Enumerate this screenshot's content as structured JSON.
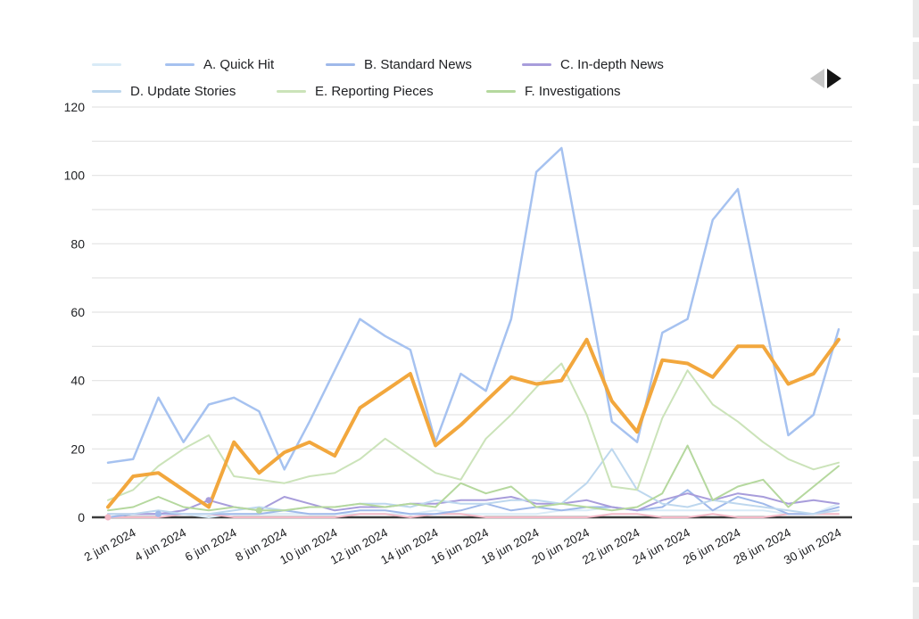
{
  "page": {
    "background": "#ffffff"
  },
  "legend": {
    "position": "top",
    "pagination": {
      "prev_enabled": false,
      "next_enabled": true,
      "prev_color": "#c7c7c7",
      "next_color": "#141414"
    }
  },
  "axes": {
    "y_ticks": [
      0,
      20,
      40,
      60,
      80,
      100,
      120
    ],
    "y_minor_grid_step": 10,
    "ylim": [
      0,
      120
    ],
    "x_tick_labels": [
      "2 jun 2024",
      "4 jun 2024",
      "6 jun 2024",
      "8 jun 2024",
      "10 jun 2024",
      "12 jun 2024",
      "14 jun 2024",
      "16 jun 2024",
      "18 jun 2024",
      "20 jun 2024",
      "22 jun 2024",
      "24 jun 2024",
      "26 jun 2024",
      "28 jun 2024",
      "30 jun 2024"
    ],
    "grid_color": "#e3e3e3",
    "axis_line_color": "#3c3c3c",
    "label_color": "#202124"
  },
  "chart_data": {
    "type": "line",
    "title": "",
    "xlabel": "",
    "ylabel": "",
    "ylim": [
      0,
      120
    ],
    "grid": "horizontal every 10",
    "legend_position": "top",
    "x": [
      "1 jun 2024",
      "2 jun 2024",
      "3 jun 2024",
      "4 jun 2024",
      "5 jun 2024",
      "6 jun 2024",
      "7 jun 2024",
      "8 jun 2024",
      "9 jun 2024",
      "10 jun 2024",
      "11 jun 2024",
      "12 jun 2024",
      "13 jun 2024",
      "14 jun 2024",
      "15 jun 2024",
      "16 jun 2024",
      "17 jun 2024",
      "18 jun 2024",
      "19 jun 2024",
      "20 jun 2024",
      "21 jun 2024",
      "22 jun 2024",
      "23 jun 2024",
      "24 jun 2024",
      "25 jun 2024",
      "26 jun 2024",
      "27 jun 2024",
      "28 jun 2024",
      "29 jun 2024",
      "30 jun 2024"
    ],
    "x_tick_indices": [
      1,
      3,
      5,
      7,
      9,
      11,
      13,
      15,
      17,
      19,
      21,
      23,
      25,
      27,
      29
    ],
    "series": [
      {
        "label": "",
        "color": "#d9ebf7",
        "width": 2,
        "legend_visible": true,
        "values": [
          0,
          1,
          1,
          1,
          0,
          1,
          1,
          1,
          1,
          1,
          1,
          1,
          1,
          2,
          1,
          1,
          1,
          1,
          2,
          2,
          3,
          2,
          2,
          2,
          2,
          2,
          2,
          1,
          1,
          4
        ]
      },
      {
        "label": "A. Quick Hit",
        "color": "#a6c2f0",
        "width": 2.5,
        "legend_visible": true,
        "values": [
          16,
          17,
          35,
          22,
          33,
          35,
          31,
          14,
          28,
          43,
          58,
          53,
          49,
          22,
          42,
          37,
          58,
          101,
          108,
          68,
          28,
          22,
          54,
          58,
          87,
          96,
          60,
          24,
          30,
          55
        ]
      },
      {
        "label": "B. Standard News",
        "color": "#9fb9ea",
        "width": 2,
        "legend_visible": true,
        "values": [
          0,
          1,
          1,
          1,
          1,
          1,
          1,
          2,
          1,
          1,
          2,
          2,
          1,
          1,
          2,
          4,
          2,
          3,
          2,
          3,
          3,
          2,
          3,
          8,
          2,
          6,
          4,
          1,
          1,
          3
        ]
      },
      {
        "label": "C. In-depth News",
        "color": "#a89ddb",
        "width": 2,
        "legend_visible": true,
        "values": [
          1,
          1,
          1,
          2,
          5,
          3,
          2,
          6,
          4,
          2,
          3,
          3,
          4,
          4,
          5,
          5,
          6,
          4,
          4,
          5,
          3,
          2,
          5,
          7,
          5,
          7,
          6,
          4,
          5,
          4
        ]
      },
      {
        "label": "D. Update Stories",
        "color": "#bdd7ee",
        "width": 2,
        "legend_visible": true,
        "values": [
          1,
          1,
          2,
          1,
          1,
          2,
          3,
          2,
          3,
          3,
          4,
          4,
          3,
          5,
          4,
          4,
          5,
          5,
          4,
          10,
          20,
          8,
          4,
          3,
          5,
          4,
          3,
          2,
          1,
          2
        ]
      },
      {
        "label": "E. Reporting Pieces",
        "color": "#cbe3b9",
        "width": 2,
        "legend_visible": true,
        "values": [
          5,
          8,
          15,
          20,
          24,
          12,
          11,
          10,
          12,
          13,
          17,
          23,
          18,
          13,
          11,
          23,
          30,
          38,
          45,
          30,
          9,
          8,
          29,
          43,
          33,
          28,
          22,
          17,
          14,
          16
        ]
      },
      {
        "label": "F. Investigations",
        "color": "#b5d89e",
        "width": 2,
        "legend_visible": true,
        "values": [
          2,
          3,
          6,
          3,
          2,
          3,
          2,
          2,
          3,
          3,
          4,
          3,
          4,
          3,
          10,
          7,
          9,
          3,
          4,
          3,
          2,
          3,
          7,
          21,
          5,
          9,
          11,
          3,
          9,
          15
        ]
      },
      {
        "label": "",
        "color": "#f2a73d",
        "width": 4,
        "legend_visible": false,
        "values": [
          3,
          12,
          13,
          8,
          3,
          22,
          13,
          19,
          22,
          18,
          32,
          37,
          42,
          21,
          27,
          34,
          41,
          39,
          40,
          52,
          34,
          25,
          46,
          45,
          41,
          50,
          50,
          39,
          42,
          52
        ]
      },
      {
        "label": "",
        "color": "#f2b8c6",
        "width": 2,
        "legend_visible": false,
        "values": [
          0,
          0,
          0,
          1,
          1,
          0,
          0,
          0,
          0,
          0,
          1,
          1,
          0,
          1,
          1,
          0,
          0,
          0,
          0,
          0,
          1,
          1,
          0,
          0,
          1,
          0,
          0,
          1,
          1,
          1
        ]
      }
    ],
    "isolated_points": [
      {
        "series": 8,
        "index": 0
      },
      {
        "series": 2,
        "index": 2
      },
      {
        "series": 3,
        "index": 4
      },
      {
        "series": 6,
        "index": 6
      }
    ]
  }
}
